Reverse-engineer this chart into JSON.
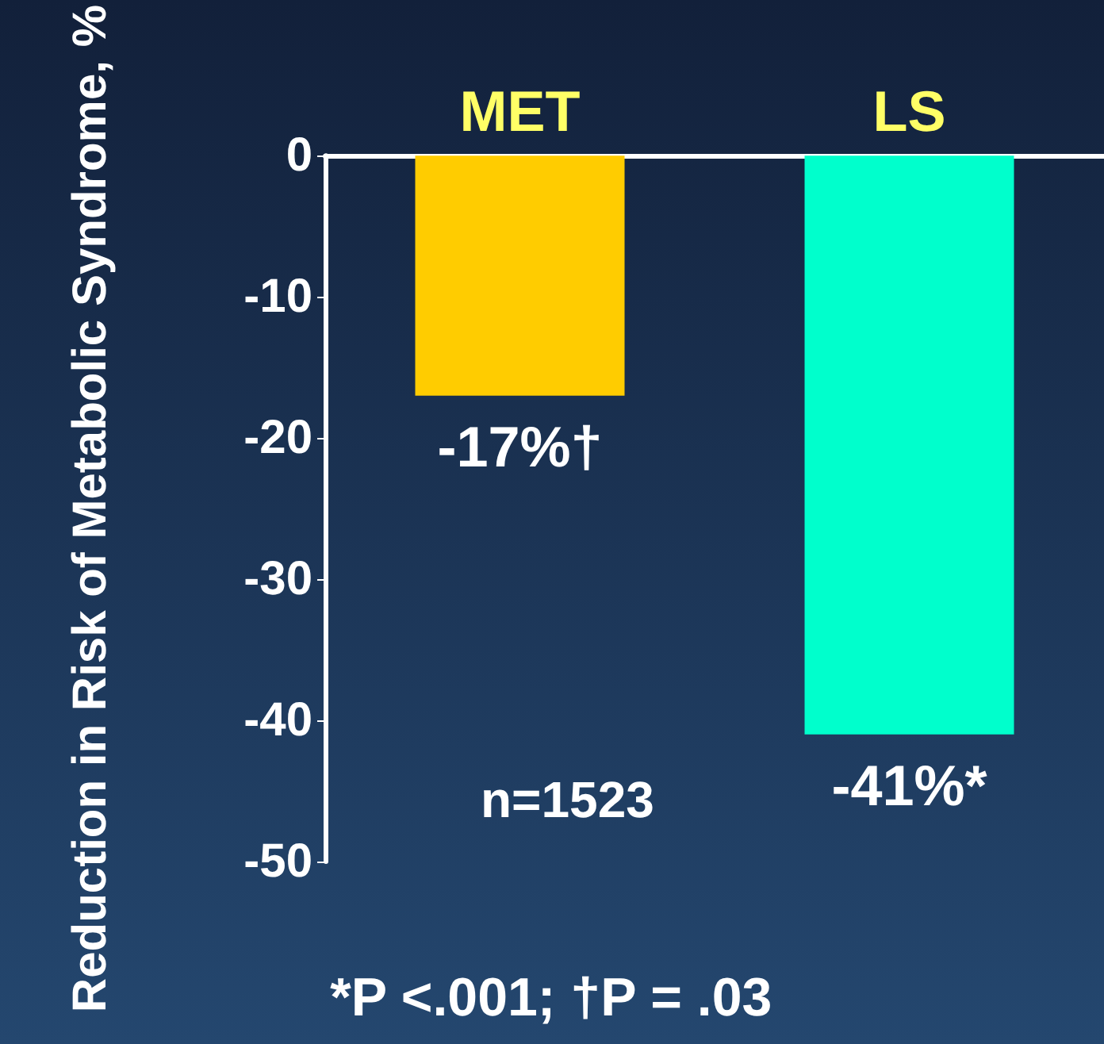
{
  "chart_data": {
    "type": "bar",
    "ylabel": "Reduction in Risk of Metabolic Syndrome, %",
    "categories": [
      "MET",
      "LS"
    ],
    "values": [
      -17,
      -41
    ],
    "colors": [
      "#ffcc00",
      "#00ffcc"
    ],
    "value_labels": [
      "-17%†",
      "-41%*"
    ],
    "ylim": [
      -50,
      0
    ],
    "yticks": [
      0,
      -10,
      -20,
      -30,
      -40,
      -50
    ],
    "grid": false,
    "annotations": [
      "n=1523",
      "*P <.001; †P = .03"
    ]
  }
}
